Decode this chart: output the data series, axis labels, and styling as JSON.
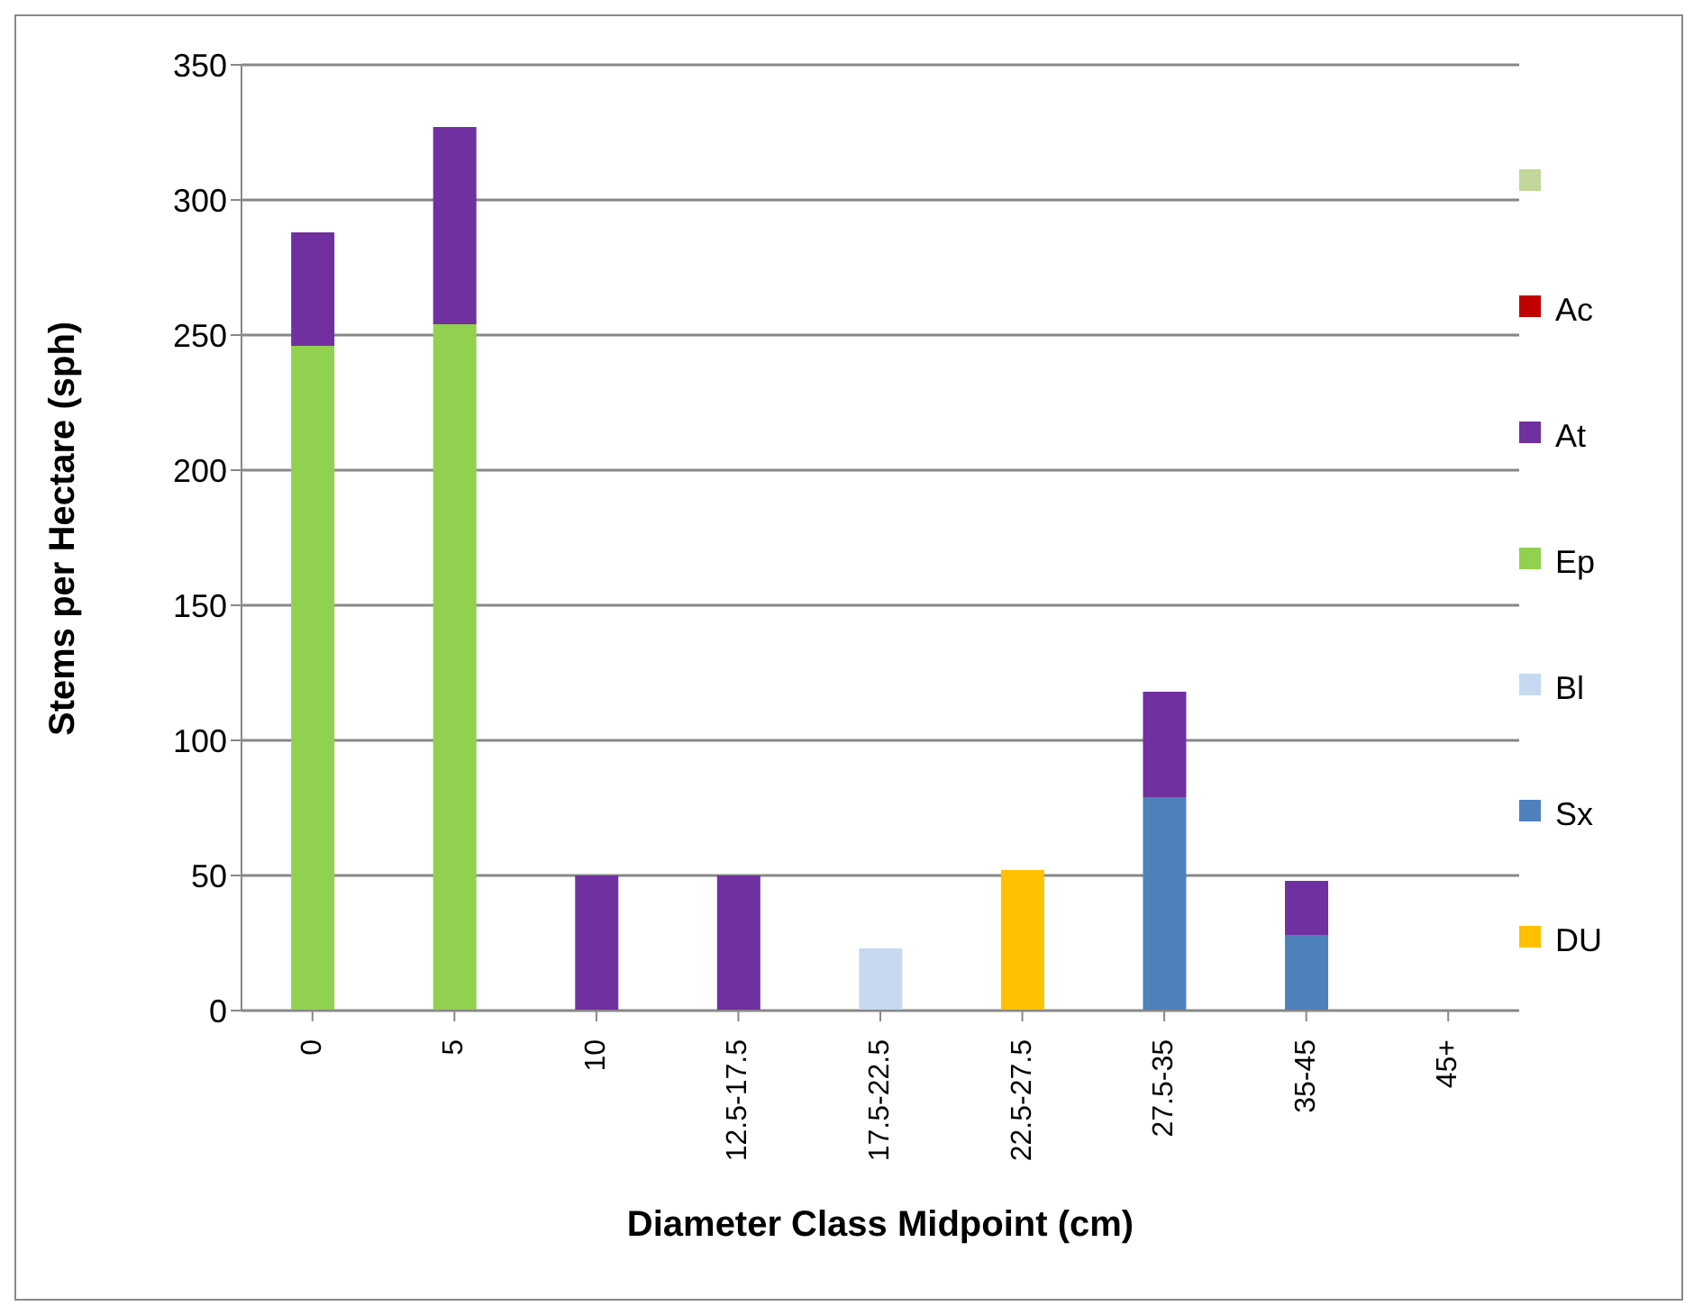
{
  "chart_data": {
    "type": "bar",
    "stacked": true,
    "xlabel": "Diameter Class Midpoint (cm)",
    "ylabel": "Stems per Hectare (sph)",
    "categories": [
      "0",
      "5",
      "10",
      "12.5-17.5",
      "17.5-22.5",
      "22.5-27.5",
      "27.5-35",
      "35-45",
      "45+"
    ],
    "series": [
      {
        "name": "DU",
        "color": "#ffc000",
        "values": [
          0,
          0,
          0,
          0,
          0,
          52,
          0,
          0,
          0
        ]
      },
      {
        "name": "Sx",
        "color": "#4f81bd",
        "values": [
          0,
          0,
          0,
          0,
          0,
          0,
          79,
          28,
          0
        ]
      },
      {
        "name": "Bl",
        "color": "#c6d9f1",
        "values": [
          0,
          0,
          0,
          0,
          23,
          0,
          0,
          0,
          0
        ]
      },
      {
        "name": "Ep",
        "color": "#92d050",
        "values": [
          246,
          254,
          0,
          0,
          0,
          0,
          0,
          0,
          0
        ]
      },
      {
        "name": "At",
        "color": "#7030a0",
        "values": [
          42,
          73,
          50,
          50,
          0,
          0,
          39,
          20,
          0
        ]
      },
      {
        "name": "Ac",
        "color": "#c00000",
        "values": [
          0,
          0,
          0,
          0,
          0,
          0,
          0,
          0,
          0
        ]
      },
      {
        "color": "#c3d69b",
        "values": [
          0,
          0,
          0,
          0,
          0,
          0,
          0,
          0,
          0
        ]
      }
    ],
    "ylim": [
      0,
      350
    ],
    "yticks": [
      0,
      50,
      100,
      150,
      200,
      250,
      300,
      350
    ],
    "grid": "y",
    "legend": "right"
  }
}
